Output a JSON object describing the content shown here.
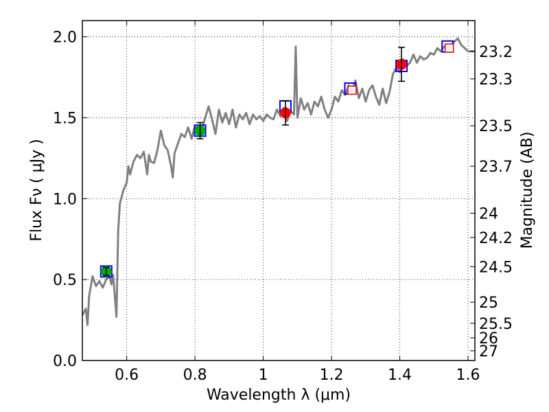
{
  "chart_data": {
    "type": "scatter",
    "title": "",
    "xlabel": "Wavelength  λ (μm)",
    "ylabel": "Flux  Fν  ( μJy )",
    "ylabel_right": "Magnitude (AB)",
    "xlim": [
      0.47,
      1.62
    ],
    "ylim": [
      0.0,
      2.1
    ],
    "grid": true,
    "x_ticks": [
      0.6,
      0.8,
      1.0,
      1.2,
      1.4,
      1.6
    ],
    "x_tick_labels": [
      "0.6",
      "0.8",
      "1",
      "1.2",
      "1.4",
      "1.6"
    ],
    "y_ticks": [
      0.0,
      0.5,
      1.0,
      1.5,
      2.0
    ],
    "y_tick_labels": [
      "0.0",
      "0.5",
      "1.0",
      "1.5",
      "2.0"
    ],
    "right_ticks": [
      {
        "label": "23.2",
        "flux": 1.91
      },
      {
        "label": "23.3",
        "flux": 1.74
      },
      {
        "label": "23.5",
        "flux": 1.45
      },
      {
        "label": "23.7",
        "flux": 1.2
      },
      {
        "label": "24",
        "flux": 0.91
      },
      {
        "label": "24.2",
        "flux": 0.76
      },
      {
        "label": "24.5",
        "flux": 0.58
      },
      {
        "label": "25",
        "flux": 0.36
      },
      {
        "label": "25.5",
        "flux": 0.23
      },
      {
        "label": "26",
        "flux": 0.14
      },
      {
        "label": "27",
        "flux": 0.06
      }
    ],
    "colors": {
      "model": "#808080",
      "model_box": "#0000ff",
      "observed_green": "#00aa00",
      "observed_red": "#ff0000",
      "error_bar": "#000000"
    },
    "series": [
      {
        "name": "model spectrum",
        "style": "line",
        "x": [
          0.47,
          0.48,
          0.485,
          0.49,
          0.5,
          0.505,
          0.51,
          0.52,
          0.53,
          0.54,
          0.55,
          0.555,
          0.56,
          0.565,
          0.57,
          0.575,
          0.58,
          0.59,
          0.6,
          0.605,
          0.61,
          0.62,
          0.63,
          0.64,
          0.65,
          0.66,
          0.665,
          0.67,
          0.68,
          0.69,
          0.7,
          0.71,
          0.72,
          0.73,
          0.735,
          0.74,
          0.75,
          0.76,
          0.77,
          0.78,
          0.79,
          0.8,
          0.81,
          0.82,
          0.83,
          0.84,
          0.85,
          0.86,
          0.87,
          0.88,
          0.89,
          0.9,
          0.91,
          0.92,
          0.93,
          0.94,
          0.95,
          0.96,
          0.97,
          0.98,
          0.99,
          1.0,
          1.01,
          1.02,
          1.03,
          1.04,
          1.05,
          1.06,
          1.07,
          1.08,
          1.09,
          1.095,
          1.1,
          1.11,
          1.12,
          1.13,
          1.14,
          1.15,
          1.16,
          1.17,
          1.18,
          1.19,
          1.2,
          1.21,
          1.22,
          1.23,
          1.24,
          1.25,
          1.26,
          1.27,
          1.28,
          1.29,
          1.3,
          1.31,
          1.32,
          1.33,
          1.34,
          1.35,
          1.36,
          1.37,
          1.38,
          1.39,
          1.4,
          1.41,
          1.42,
          1.43,
          1.44,
          1.45,
          1.46,
          1.47,
          1.48,
          1.49,
          1.5,
          1.51,
          1.52,
          1.53,
          1.54,
          1.55,
          1.56,
          1.57,
          1.58,
          1.59,
          1.6,
          1.62
        ],
        "y": [
          0.28,
          0.32,
          0.22,
          0.4,
          0.52,
          0.49,
          0.46,
          0.49,
          0.45,
          0.5,
          0.52,
          0.47,
          0.53,
          0.4,
          0.27,
          0.8,
          0.97,
          1.05,
          1.1,
          1.2,
          1.15,
          1.23,
          1.27,
          1.25,
          1.29,
          1.15,
          1.27,
          1.23,
          1.22,
          1.3,
          1.42,
          1.33,
          1.3,
          1.2,
          1.13,
          1.28,
          1.34,
          1.4,
          1.38,
          1.44,
          1.37,
          1.45,
          1.39,
          1.43,
          1.5,
          1.57,
          1.49,
          1.4,
          1.55,
          1.47,
          1.53,
          1.46,
          1.55,
          1.44,
          1.52,
          1.49,
          1.53,
          1.46,
          1.52,
          1.49,
          1.51,
          1.48,
          1.52,
          1.5,
          1.49,
          1.55,
          1.51,
          1.56,
          1.48,
          1.54,
          1.52,
          1.94,
          1.5,
          1.62,
          1.55,
          1.59,
          1.52,
          1.6,
          1.57,
          1.63,
          1.55,
          1.5,
          1.55,
          1.63,
          1.6,
          1.67,
          1.64,
          1.7,
          1.67,
          1.73,
          1.62,
          1.68,
          1.6,
          1.67,
          1.7,
          1.63,
          1.58,
          1.68,
          1.59,
          1.66,
          1.77,
          1.81,
          1.78,
          1.86,
          1.82,
          1.84,
          1.89,
          1.84,
          1.88,
          1.86,
          1.87,
          1.9,
          1.89,
          1.93,
          1.91,
          1.94,
          1.93,
          1.95,
          1.97,
          1.99,
          1.95,
          1.93,
          1.91,
          1.91
        ]
      },
      {
        "name": "model photometry",
        "style": "open_square",
        "color": "#0000ff",
        "x": [
          0.54,
          0.815,
          1.065,
          1.255,
          1.405,
          1.54
        ],
        "y": [
          0.55,
          1.42,
          1.57,
          1.68,
          1.82,
          1.94
        ]
      },
      {
        "name": "observed (green)",
        "style": "filled_circle",
        "color": "#00aa00",
        "x": [
          0.54,
          0.815
        ],
        "y": [
          0.55,
          1.42
        ],
        "yerr": [
          0.025,
          0.05
        ]
      },
      {
        "name": "observed (red)",
        "style": "filled_circle",
        "color": "#ff0000",
        "x": [
          1.065,
          1.405
        ],
        "y": [
          1.53,
          1.83
        ],
        "yerr": [
          0.075,
          0.105
        ]
      },
      {
        "name": "upper limits",
        "style": "open_square",
        "color": "#ff0000",
        "x": [
          1.26,
          1.545
        ],
        "y": [
          1.67,
          1.93
        ]
      }
    ]
  }
}
